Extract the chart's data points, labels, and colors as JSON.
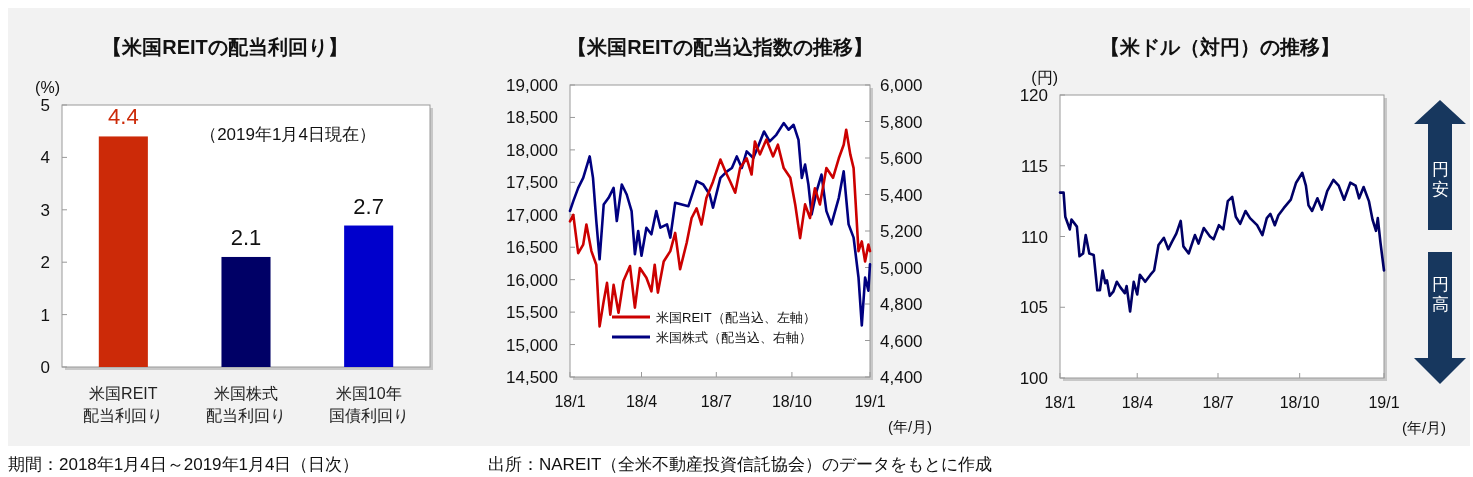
{
  "chart_data": [
    {
      "type": "bar",
      "title": "【米国REITの配当利回り】",
      "ylabel": "(%)",
      "categories": [
        "米国REIT配当利回り",
        "米国株式配当利回り",
        "米国10年国債利回り"
      ],
      "values": [
        4.4,
        2.1,
        2.7
      ],
      "colors": [
        "#cc2a08",
        "#000066",
        "#0000cc"
      ],
      "data_labels": true,
      "ylim": [
        0,
        5
      ],
      "yticks": [
        0,
        1,
        2,
        3,
        4,
        5
      ],
      "annotations": [
        "（2019年1月4日現在）",
        "期間：2018年1月4日～2019年1月4日（日次）",
        "出所：NAREIT（全米不動産投資信託協会）のデータをもとに作成"
      ]
    },
    {
      "type": "line",
      "title": "【米国REITの配当込指数の推移】",
      "xlabel": "(年/月)",
      "legend": "bottom",
      "xlim": [
        "2018-01-04",
        "2019-01-04"
      ],
      "xticks": [
        {
          "value": "2018-01-04",
          "label": "18/1"
        },
        {
          "value": "2018-04-01",
          "label": "18/4"
        },
        {
          "value": "2018-07-01",
          "label": "18/7"
        },
        {
          "value": "2018-10-01",
          "label": "18/10"
        },
        {
          "value": "2019-01-04",
          "label": "19/1"
        }
      ],
      "ylim": [
        14500,
        19000
      ],
      "yticks": [
        {
          "value": 14500,
          "label": "14,500"
        },
        {
          "value": 15000,
          "label": "15,000"
        },
        {
          "value": 15500,
          "label": "15,500"
        },
        {
          "value": 16000,
          "label": "16,000"
        },
        {
          "value": 16500,
          "label": "16,500"
        },
        {
          "value": 17000,
          "label": "17,000"
        },
        {
          "value": 17500,
          "label": "17,500"
        },
        {
          "value": 18000,
          "label": "18,000"
        },
        {
          "value": 18500,
          "label": "18,500"
        },
        {
          "value": 19000,
          "label": "19,000"
        }
      ],
      "y2lim": [
        4400,
        6000
      ],
      "y2ticks": [
        {
          "value": 4400,
          "label": "4,400"
        },
        {
          "value": 4600,
          "label": "4,600"
        },
        {
          "value": 4800,
          "label": "4,800"
        },
        {
          "value": 5000,
          "label": "5,000"
        },
        {
          "value": 5200,
          "label": "5,200"
        },
        {
          "value": 5400,
          "label": "5,400"
        },
        {
          "value": 5600,
          "label": "5,600"
        },
        {
          "value": 5800,
          "label": "5,800"
        },
        {
          "value": 6000,
          "label": "6,000"
        }
      ],
      "series": [
        {
          "name": "米国REIT（配当込、左軸）",
          "color": "#cc0000",
          "x": [
            "2018-01-04",
            "2018-01-08",
            "2018-01-14",
            "2018-01-20",
            "2018-01-24",
            "2018-01-30",
            "2018-02-05",
            "2018-02-09",
            "2018-02-14",
            "2018-02-18",
            "2018-02-22",
            "2018-02-26",
            "2018-03-04",
            "2018-03-10",
            "2018-03-18",
            "2018-03-24",
            "2018-03-30",
            "2018-04-07",
            "2018-04-13",
            "2018-04-17",
            "2018-04-21",
            "2018-04-28",
            "2018-05-06",
            "2018-05-12",
            "2018-05-18",
            "2018-05-26",
            "2018-06-01",
            "2018-06-07",
            "2018-06-13",
            "2018-06-19",
            "2018-06-27",
            "2018-07-06",
            "2018-07-12",
            "2018-07-18",
            "2018-07-24",
            "2018-07-30",
            "2018-08-07",
            "2018-08-13",
            "2018-08-17",
            "2018-08-23",
            "2018-08-31",
            "2018-09-08",
            "2018-09-14",
            "2018-09-21",
            "2018-09-29",
            "2018-10-05",
            "2018-10-11",
            "2018-10-17",
            "2018-10-23",
            "2018-10-29",
            "2018-11-04",
            "2018-11-12",
            "2018-11-20",
            "2018-11-27",
            "2018-12-03",
            "2018-12-06",
            "2018-12-11",
            "2018-12-15",
            "2018-12-21",
            "2018-12-25",
            "2018-12-29",
            "2019-01-02",
            "2019-01-04"
          ],
          "values": [
            16900,
            17000,
            16410,
            16540,
            16850,
            16440,
            16230,
            15280,
            15670,
            15950,
            15460,
            15920,
            15490,
            15980,
            16210,
            15570,
            16180,
            16030,
            15820,
            16230,
            15800,
            16280,
            16440,
            16720,
            16160,
            16570,
            16950,
            17100,
            16850,
            17260,
            17510,
            17850,
            17670,
            17510,
            17340,
            17720,
            17870,
            17620,
            18130,
            17930,
            18160,
            17900,
            18080,
            17720,
            17570,
            17160,
            16640,
            17160,
            16950,
            17410,
            17160,
            17720,
            17570,
            17870,
            18080,
            18310,
            17930,
            17720,
            16440,
            16590,
            16280,
            16540,
            16440
          ]
        },
        {
          "name": "米国株式（配当込、右軸）",
          "color": "#000080",
          "axis": "y2",
          "x": [
            "2018-01-04",
            "2018-01-08",
            "2018-01-14",
            "2018-01-20",
            "2018-01-28",
            "2018-02-01",
            "2018-02-05",
            "2018-02-09",
            "2018-02-14",
            "2018-02-20",
            "2018-02-26",
            "2018-03-02",
            "2018-03-08",
            "2018-03-14",
            "2018-03-20",
            "2018-03-24",
            "2018-03-28",
            "2018-04-01",
            "2018-04-07",
            "2018-04-13",
            "2018-04-19",
            "2018-04-24",
            "2018-05-02",
            "2018-05-06",
            "2018-05-12",
            "2018-05-20",
            "2018-05-28",
            "2018-06-07",
            "2018-06-15",
            "2018-06-23",
            "2018-06-27",
            "2018-07-06",
            "2018-07-14",
            "2018-07-20",
            "2018-07-26",
            "2018-08-01",
            "2018-08-07",
            "2018-08-15",
            "2018-08-21",
            "2018-08-28",
            "2018-09-04",
            "2018-09-12",
            "2018-09-21",
            "2018-09-27",
            "2018-10-03",
            "2018-10-09",
            "2018-10-13",
            "2018-10-17",
            "2018-10-21",
            "2018-10-25",
            "2018-10-31",
            "2018-11-06",
            "2018-11-12",
            "2018-11-18",
            "2018-11-27",
            "2018-12-03",
            "2018-12-09",
            "2018-12-15",
            "2018-12-21",
            "2018-12-25",
            "2018-12-29",
            "2019-01-02",
            "2019-01-04"
          ],
          "values": [
            5310,
            5364,
            5436,
            5491,
            5609,
            5491,
            5255,
            5045,
            5345,
            5382,
            5436,
            5255,
            5455,
            5400,
            5309,
            5073,
            5200,
            5064,
            5218,
            5182,
            5309,
            5218,
            5236,
            5164,
            5355,
            5345,
            5336,
            5473,
            5455,
            5400,
            5327,
            5491,
            5527,
            5545,
            5609,
            5545,
            5636,
            5600,
            5664,
            5745,
            5691,
            5727,
            5791,
            5755,
            5782,
            5700,
            5491,
            5564,
            5455,
            5291,
            5418,
            5509,
            5309,
            5236,
            5382,
            5527,
            5236,
            5164,
            4945,
            4682,
            4945,
            4873,
            5018
          ]
        }
      ]
    },
    {
      "type": "line",
      "title": "【米ドル（対円）の推移】",
      "ylabel": "(円)",
      "xlabel": "(年/月)",
      "xlim": [
        "2018-01-04",
        "2019-01-04"
      ],
      "xticks": [
        {
          "value": "2018-01-04",
          "label": "18/1"
        },
        {
          "value": "2018-04-01",
          "label": "18/4"
        },
        {
          "value": "2018-07-01",
          "label": "18/7"
        },
        {
          "value": "2018-10-01",
          "label": "18/10"
        },
        {
          "value": "2019-01-04",
          "label": "19/1"
        }
      ],
      "ylim": [
        100,
        120
      ],
      "yticks": [
        100,
        105,
        110,
        115,
        120
      ],
      "annotations": [
        "円安",
        "円高"
      ],
      "series": [
        {
          "color": "#000066",
          "x": [
            "2018-01-04",
            "2018-01-08",
            "2018-01-10",
            "2018-01-15",
            "2018-01-17",
            "2018-01-23",
            "2018-01-26",
            "2018-01-30",
            "2018-02-02",
            "2018-02-06",
            "2018-02-11",
            "2018-02-15",
            "2018-02-18",
            "2018-02-21",
            "2018-02-24",
            "2018-02-26",
            "2018-03-01",
            "2018-03-05",
            "2018-03-09",
            "2018-03-13",
            "2018-03-18",
            "2018-03-20",
            "2018-03-24",
            "2018-03-28",
            "2018-04-01",
            "2018-04-04",
            "2018-04-10",
            "2018-04-16",
            "2018-04-20",
            "2018-04-25",
            "2018-05-01",
            "2018-05-06",
            "2018-05-10",
            "2018-05-15",
            "2018-05-20",
            "2018-05-23",
            "2018-05-29",
            "2018-06-05",
            "2018-06-09",
            "2018-06-15",
            "2018-06-22",
            "2018-06-26",
            "2018-07-02",
            "2018-07-07",
            "2018-07-12",
            "2018-07-17",
            "2018-07-21",
            "2018-07-26",
            "2018-08-01",
            "2018-08-06",
            "2018-08-14",
            "2018-08-20",
            "2018-08-25",
            "2018-08-29",
            "2018-09-03",
            "2018-09-07",
            "2018-09-13",
            "2018-09-21",
            "2018-09-27",
            "2018-10-04",
            "2018-10-08",
            "2018-10-11",
            "2018-10-15",
            "2018-10-21",
            "2018-10-26",
            "2018-11-01",
            "2018-11-08",
            "2018-11-14",
            "2018-11-20",
            "2018-11-27",
            "2018-12-03",
            "2018-12-07",
            "2018-12-12",
            "2018-12-18",
            "2018-12-22",
            "2018-12-26",
            "2018-12-28",
            "2018-12-31",
            "2019-01-04"
          ],
          "values": [
            113.1,
            113.1,
            111.4,
            110.5,
            111.2,
            110.7,
            108.6,
            108.8,
            110.1,
            108.8,
            108.7,
            106.2,
            106.2,
            107.6,
            106.7,
            106.9,
            105.8,
            106.1,
            106.8,
            106.4,
            106.0,
            106.5,
            104.7,
            106.8,
            105.9,
            107.3,
            106.8,
            107.3,
            107.6,
            109.4,
            109.9,
            109.1,
            109.6,
            110.2,
            111.1,
            109.3,
            108.8,
            110.1,
            109.5,
            110.6,
            110.0,
            109.8,
            110.8,
            110.5,
            112.5,
            112.8,
            111.4,
            110.9,
            111.8,
            111.3,
            110.8,
            110.1,
            111.3,
            111.6,
            110.8,
            111.5,
            112.0,
            112.6,
            113.8,
            114.5,
            113.6,
            112.2,
            111.8,
            112.7,
            111.9,
            113.2,
            114.0,
            113.6,
            112.6,
            113.8,
            113.6,
            112.7,
            113.5,
            112.5,
            111.2,
            110.4,
            111.3,
            109.6,
            107.6
          ]
        }
      ]
    }
  ]
}
